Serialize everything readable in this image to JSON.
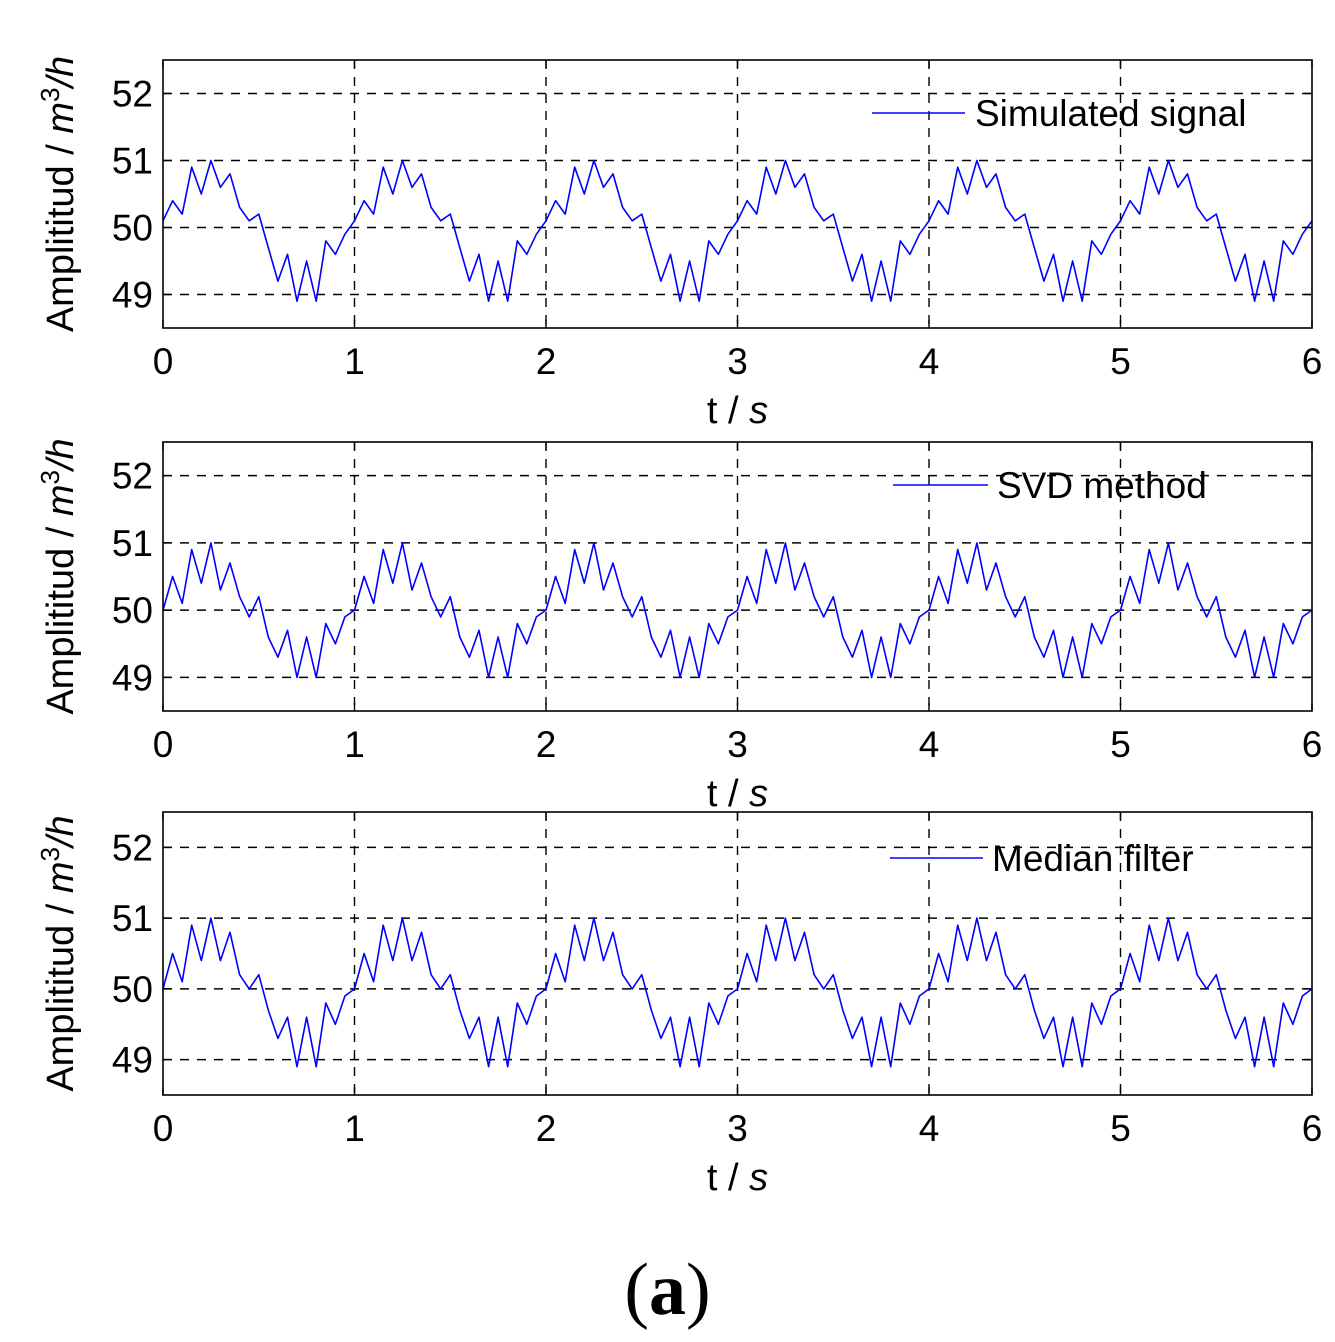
{
  "caption": {
    "open": "(",
    "letter": "a",
    "close": ")"
  },
  "chart_data": [
    {
      "type": "line",
      "legend": "Simulated signal",
      "legend_position": "top-right",
      "xlabel": "t / s",
      "ylabel": "Amplititud / m3/h",
      "xlim": [
        0,
        6
      ],
      "ylim": [
        48.5,
        52.5
      ],
      "xticks": [
        0,
        1,
        2,
        3,
        4,
        5,
        6
      ],
      "yticks": [
        49,
        50,
        51,
        52
      ],
      "grid": true,
      "color": "#0000ff",
      "period": 1.0,
      "x": [
        0,
        0.05,
        0.1,
        0.15,
        0.2,
        0.25,
        0.3,
        0.35,
        0.4,
        0.45,
        0.5,
        0.55,
        0.6,
        0.65,
        0.7,
        0.75,
        0.8,
        0.85,
        0.9,
        0.95,
        1.0
      ],
      "y": [
        50.1,
        50.4,
        50.2,
        50.9,
        50.5,
        51.0,
        50.6,
        50.8,
        50.3,
        50.1,
        50.2,
        49.7,
        49.2,
        49.6,
        48.9,
        49.5,
        48.9,
        49.8,
        49.6,
        49.9,
        50.1
      ]
    },
    {
      "type": "line",
      "legend": "SVD method",
      "legend_position": "top-right",
      "xlabel": "t / s",
      "ylabel": "Amplititud / m3/h",
      "xlim": [
        0,
        6
      ],
      "ylim": [
        48.5,
        52.5
      ],
      "xticks": [
        0,
        1,
        2,
        3,
        4,
        5,
        6
      ],
      "yticks": [
        49,
        50,
        51,
        52
      ],
      "grid": true,
      "color": "#0000ff",
      "period": 1.0,
      "x": [
        0,
        0.05,
        0.1,
        0.15,
        0.2,
        0.25,
        0.3,
        0.35,
        0.4,
        0.45,
        0.5,
        0.55,
        0.6,
        0.65,
        0.7,
        0.75,
        0.8,
        0.85,
        0.9,
        0.95,
        1.0
      ],
      "y": [
        50.0,
        50.5,
        50.1,
        50.9,
        50.4,
        51.0,
        50.3,
        50.7,
        50.2,
        49.9,
        50.2,
        49.6,
        49.3,
        49.7,
        49.0,
        49.6,
        49.0,
        49.8,
        49.5,
        49.9,
        50.0
      ]
    },
    {
      "type": "line",
      "legend": "Median filter",
      "legend_position": "top-right",
      "xlabel": "t / s",
      "ylabel": "Amplititud / m3/h",
      "xlim": [
        0,
        6
      ],
      "ylim": [
        48.5,
        52.5
      ],
      "xticks": [
        0,
        1,
        2,
        3,
        4,
        5,
        6
      ],
      "yticks": [
        49,
        50,
        51,
        52
      ],
      "grid": true,
      "color": "#0000ff",
      "period": 1.0,
      "x": [
        0,
        0.05,
        0.1,
        0.15,
        0.2,
        0.25,
        0.3,
        0.35,
        0.4,
        0.45,
        0.5,
        0.55,
        0.6,
        0.65,
        0.7,
        0.75,
        0.8,
        0.85,
        0.9,
        0.95,
        1.0
      ],
      "y": [
        50.0,
        50.5,
        50.1,
        50.9,
        50.4,
        51.0,
        50.4,
        50.8,
        50.2,
        50.0,
        50.2,
        49.7,
        49.3,
        49.6,
        48.9,
        49.6,
        48.9,
        49.8,
        49.5,
        49.9,
        50.0
      ]
    }
  ]
}
